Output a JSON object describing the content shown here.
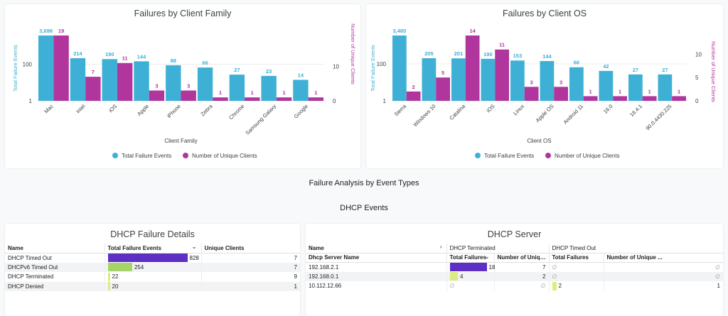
{
  "colors": {
    "total_failure": "#3eb0d5",
    "unique_clients": "#b0369e",
    "bar_purple": "#5d2fc4",
    "bar_green": "#a6d46b",
    "bar_lightgreen": "#dbec80"
  },
  "chart_data": [
    {
      "type": "bar",
      "title": "Failures by Client Family",
      "xlabel": "Client Family",
      "ylabel_left": "Total Failure Events",
      "ylabel_right": "Number of Unique Clients",
      "y_left_scale": "log",
      "y_left_ticks": [
        "1",
        "100"
      ],
      "y_right_ticks": [
        "0",
        "10"
      ],
      "y_right_max": 19,
      "categories": [
        "Mac",
        "Intel",
        "iOS",
        "Apple",
        "iPhone",
        "Zebra",
        "Chrome",
        "Samsung Galaxy",
        "Google"
      ],
      "series": [
        {
          "name": "Total Failure Events",
          "axis": "left",
          "values": [
            3698,
            214,
            190,
            144,
            88,
            66,
            27,
            23,
            14
          ],
          "labels": [
            "3,698",
            "214",
            "190",
            "144",
            "88",
            "66",
            "27",
            "23",
            "14"
          ]
        },
        {
          "name": "Number of Unique Clients",
          "axis": "right",
          "values": [
            19,
            7,
            11,
            3,
            3,
            1,
            1,
            1,
            1
          ],
          "labels": [
            "19",
            "7",
            "11",
            "3",
            "3",
            "1",
            "1",
            "1",
            "1"
          ]
        }
      ],
      "legend": [
        "Total Failure Events",
        "Number of Unique Clients"
      ],
      "legend_position": "bottom"
    },
    {
      "type": "bar",
      "title": "Failures by Client OS",
      "xlabel": "Client OS",
      "ylabel_left": "Total Failure Events",
      "ylabel_right": "Number of Unique Clients",
      "y_left_scale": "log",
      "y_left_ticks": [
        "1",
        "100"
      ],
      "y_right_ticks": [
        "0",
        "5",
        "10"
      ],
      "y_right_max": 14,
      "categories": [
        "Sierra",
        "Windows 10",
        "Catalina",
        "iOS",
        "Linux",
        "Apple OS",
        "Android 11",
        "16.0",
        "16.4.1",
        "90.0.4430.225"
      ],
      "series": [
        {
          "name": "Total Failure Events",
          "axis": "left",
          "values": [
            3480,
            205,
            201,
            190,
            153,
            144,
            66,
            42,
            27,
            27
          ],
          "labels": [
            "3,480",
            "205",
            "201",
            "190",
            "153",
            "144",
            "66",
            "42",
            "27",
            "27"
          ]
        },
        {
          "name": "Number of Unique Clients",
          "axis": "right",
          "values": [
            2,
            5,
            14,
            11,
            3,
            3,
            1,
            1,
            1,
            1
          ],
          "labels": [
            "2",
            "5",
            "14",
            "11",
            "3",
            "3",
            "1",
            "1",
            "1",
            "1"
          ]
        }
      ],
      "legend": [
        "Total Failure Events",
        "Number of Unique Clients"
      ],
      "legend_position": "bottom"
    }
  ],
  "sections": {
    "main": "Failure Analysis by Event Types",
    "sub": "DHCP Events"
  },
  "dhcp_details": {
    "title": "DHCP Failure Details",
    "columns": [
      "Name",
      "Total Failure Events",
      "Unique Clients"
    ],
    "max": 828,
    "rows": [
      {
        "name": "DHCP Timed Out",
        "total": 828,
        "total_label": "828",
        "unique": "7",
        "bar": "purple"
      },
      {
        "name": "DHCPv6 Timed Out",
        "total": 254,
        "total_label": "254",
        "unique": "7",
        "bar": "green"
      },
      {
        "name": "DHCP Terminated",
        "total": 22,
        "total_label": "22",
        "unique": "9",
        "bar": "lightgreen"
      },
      {
        "name": "DHCP Denied",
        "total": 20,
        "total_label": "20",
        "unique": "1",
        "bar": "lightgreen"
      }
    ]
  },
  "dhcp_server": {
    "title": "DHCP Server",
    "pivot_label": "Name",
    "groups": [
      "DHCP Terminated",
      "DHCP Timed Out"
    ],
    "columns": [
      "Dhcp Server Name",
      "Total Failures",
      "Number of Unique ...",
      "Total Failures",
      "Number of Unique ..."
    ],
    "null_symbol": "∅",
    "rows": [
      {
        "name": "192.168.2.1",
        "term_total": 18,
        "term_total_label": "18",
        "term_unique": "7",
        "to_total": null,
        "to_unique": null
      },
      {
        "name": "192.168.0.1",
        "term_total": 4,
        "term_total_label": "4",
        "term_unique": "2",
        "to_total": null,
        "to_unique": null
      },
      {
        "name": "10.112.12.66",
        "term_total": null,
        "term_unique": null,
        "to_total": 2,
        "to_total_label": "2",
        "to_unique": "1"
      }
    ]
  }
}
